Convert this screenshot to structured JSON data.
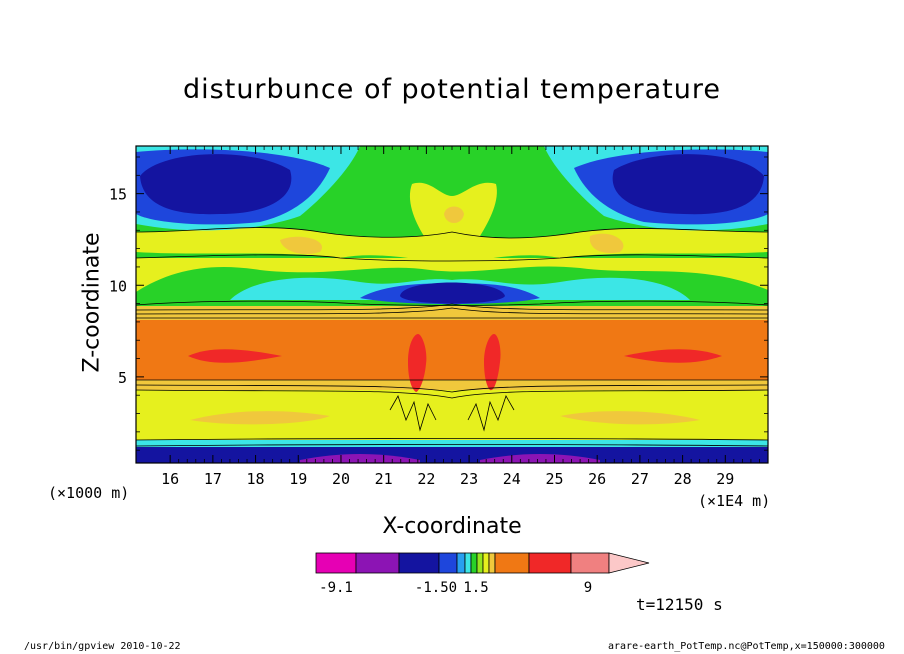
{
  "chart_data": {
    "type": "heatmap",
    "title": "disturbunce of potential temperature",
    "xlabel": "X-coordinate",
    "ylabel": "Z-coordinate",
    "x_unit": "(×1E4 m)",
    "y_unit": "(×1000 m)",
    "xlim": [
      15.2,
      30.0
    ],
    "ylim": [
      0.3,
      17.6
    ],
    "x_ticks": [
      "16",
      "17",
      "18",
      "19",
      "20",
      "21",
      "22",
      "23",
      "24",
      "25",
      "26",
      "27",
      "28",
      "29"
    ],
    "y_ticks": [
      "5",
      "10",
      "15"
    ],
    "colorbar": {
      "colors": [
        "#e600b4",
        "#8c14b4",
        "#1414a0",
        "#1e46dc",
        "#28a0f0",
        "#3ce6e6",
        "#28d228",
        "#96e61e",
        "#e6f01e",
        "#f0c83c",
        "#f07814",
        "#f02828",
        "#f08080",
        "#fcc8c8"
      ],
      "tick_labels": [
        "-9.1",
        "-1.50",
        "1.5",
        "9"
      ]
    },
    "time_label": "t=12150 s"
  },
  "footer": {
    "left": "/usr/bin/gpview   2010-10-22",
    "right": "arare-earth_PotTemp.nc@PotTemp,x=150000:300000"
  }
}
